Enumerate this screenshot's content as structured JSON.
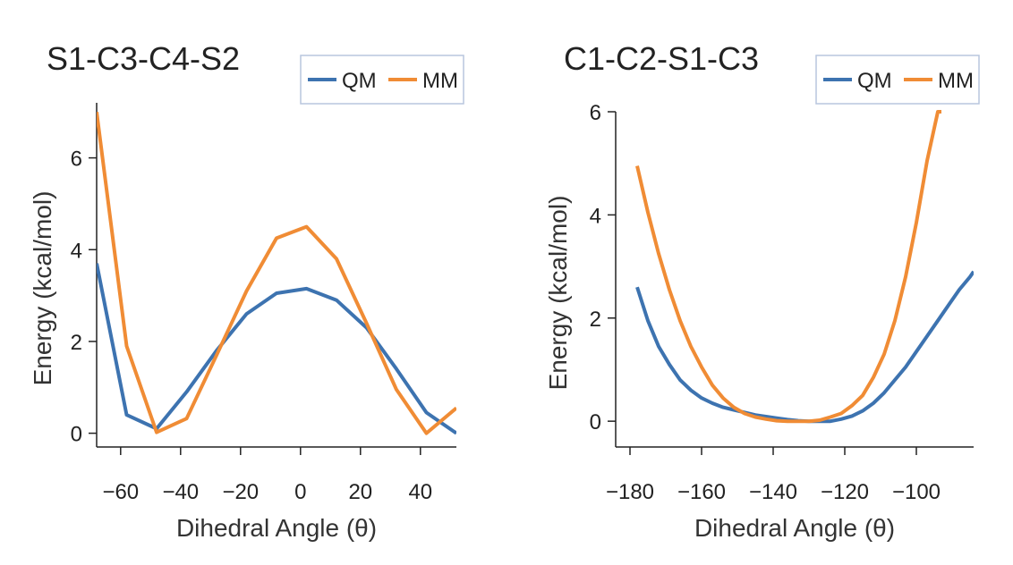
{
  "chart_data": [
    {
      "type": "line",
      "title": "S1-C3-C4-S2",
      "xlabel": "Dihedral Angle (θ)",
      "ylabel": "Energy (kcal/mol)",
      "xlim": [
        -68,
        52
      ],
      "ylim": [
        -0.3,
        7.2
      ],
      "xticks": [
        -60,
        -40,
        -20,
        0,
        20,
        40
      ],
      "xtick_labels": [
        "−60",
        "−40",
        "−20",
        "0",
        "20",
        "40"
      ],
      "yticks": [
        0,
        2,
        4,
        6
      ],
      "ytick_labels": [
        "0",
        "2",
        "4",
        "6"
      ],
      "legend": "top-right",
      "colors": {
        "QM": "#3d73b0",
        "MM": "#f08c35"
      },
      "series": [
        {
          "name": "QM",
          "x": [
            -68,
            -58,
            -48,
            -38,
            -28,
            -18,
            -8,
            2,
            12,
            22,
            32,
            42,
            52
          ],
          "y": [
            3.7,
            0.4,
            0.1,
            0.9,
            1.8,
            2.6,
            3.05,
            3.15,
            2.9,
            2.3,
            1.4,
            0.45,
            0.0
          ]
        },
        {
          "name": "MM",
          "x": [
            -68,
            -58,
            -48,
            -38,
            -28,
            -18,
            -8,
            2,
            12,
            22,
            32,
            42,
            52
          ],
          "y": [
            7.0,
            1.9,
            0.02,
            0.32,
            1.7,
            3.1,
            4.25,
            4.5,
            3.8,
            2.4,
            0.95,
            0.0,
            0.55
          ]
        }
      ]
    },
    {
      "type": "line",
      "title": "C1-C2-S1-C3",
      "xlabel": "Dihedral Angle (θ)",
      "ylabel": "Energy (kcal/mol)",
      "xlim": [
        -184,
        -84
      ],
      "ylim": [
        -0.5,
        6.0
      ],
      "xticks": [
        -180,
        -160,
        -140,
        -120,
        -100
      ],
      "xtick_labels": [
        "−180",
        "−160",
        "−140",
        "−120",
        "−100"
      ],
      "yticks": [
        0,
        2,
        4,
        6
      ],
      "ytick_labels": [
        "0",
        "2",
        "4",
        "6"
      ],
      "legend": "top-right",
      "colors": {
        "QM": "#3d73b0",
        "MM": "#f08c35"
      },
      "series": [
        {
          "name": "QM",
          "x": [
            -178,
            -175,
            -172,
            -169,
            -166,
            -163,
            -160,
            -157,
            -154,
            -151,
            -148,
            -145,
            -142,
            -139,
            -136,
            -133,
            -130,
            -127,
            -124,
            -121,
            -118,
            -115,
            -112,
            -109,
            -106,
            -103,
            -100,
            -97,
            -94,
            -91,
            -88,
            -85,
            -84
          ],
          "y": [
            2.6,
            1.95,
            1.45,
            1.1,
            0.8,
            0.6,
            0.45,
            0.35,
            0.27,
            0.22,
            0.17,
            0.12,
            0.09,
            0.06,
            0.03,
            0.01,
            0.0,
            0.0,
            0.0,
            0.04,
            0.1,
            0.2,
            0.35,
            0.55,
            0.8,
            1.05,
            1.35,
            1.65,
            1.95,
            2.25,
            2.55,
            2.8,
            2.9
          ]
        },
        {
          "name": "MM",
          "x": [
            -178,
            -175,
            -172,
            -169,
            -166,
            -163,
            -160,
            -157,
            -154,
            -151,
            -148,
            -145,
            -142,
            -139,
            -136,
            -133,
            -130,
            -127,
            -124,
            -121,
            -118,
            -115,
            -112,
            -109,
            -106,
            -103,
            -100,
            -97,
            -94,
            -93
          ],
          "y": [
            4.95,
            4.05,
            3.25,
            2.55,
            1.95,
            1.45,
            1.05,
            0.7,
            0.45,
            0.27,
            0.15,
            0.08,
            0.04,
            0.01,
            0.0,
            0.0,
            0.0,
            0.02,
            0.08,
            0.15,
            0.3,
            0.5,
            0.85,
            1.3,
            1.95,
            2.8,
            3.85,
            5.05,
            6.0,
            6.0
          ]
        }
      ]
    }
  ]
}
